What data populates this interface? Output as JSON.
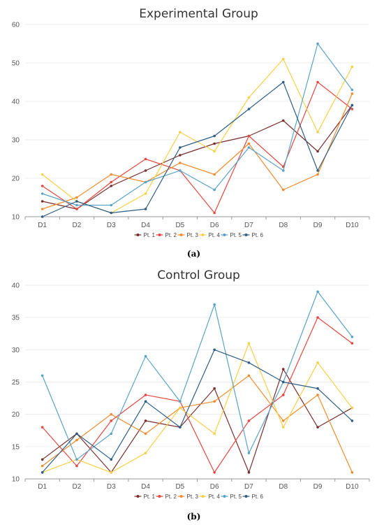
{
  "chart_data": [
    {
      "type": "line",
      "title": "Experimental Group",
      "caption": "(a)",
      "categories": [
        "D1",
        "D2",
        "D3",
        "D4",
        "D5",
        "D6",
        "D7",
        "D8",
        "D9",
        "D10"
      ],
      "ylim": [
        10,
        60
      ],
      "yticks": [
        10,
        20,
        30,
        40,
        50,
        60
      ],
      "grid": "horizontal",
      "legend_position": "bottom",
      "series": [
        {
          "name": "Pt. 1",
          "color": "#7a2e2e",
          "values": [
            14,
            12,
            18,
            22,
            26,
            29,
            31,
            35,
            27,
            39
          ]
        },
        {
          "name": "Pt. 2",
          "color": "#e8473f",
          "values": [
            18,
            12,
            19,
            25,
            22,
            11,
            31,
            23,
            45,
            38
          ]
        },
        {
          "name": "Pt. 3",
          "color": "#f28c2e",
          "values": [
            12,
            15,
            21,
            19,
            24,
            21,
            29,
            17,
            21,
            42
          ]
        },
        {
          "name": "Pt. 4",
          "color": "#f7d046",
          "values": [
            21,
            14,
            11,
            16,
            32,
            27,
            41,
            51,
            32,
            49
          ]
        },
        {
          "name": "Pt. 5",
          "color": "#5aa3c8",
          "values": [
            16,
            13,
            13,
            19,
            22,
            17,
            28,
            22,
            55,
            43
          ]
        },
        {
          "name": "Pt. 6",
          "color": "#2e5e86",
          "values": [
            10,
            14,
            11,
            12,
            28,
            31,
            38,
            45,
            22,
            39
          ]
        }
      ]
    },
    {
      "type": "line",
      "title": "Control Group",
      "caption": "(b)",
      "categories": [
        "D1",
        "D2",
        "D3",
        "D4",
        "D5",
        "D6",
        "D7",
        "D8",
        "D9",
        "D10"
      ],
      "ylim": [
        10,
        40
      ],
      "yticks": [
        10,
        15,
        20,
        25,
        30,
        35,
        40
      ],
      "grid": "horizontal",
      "legend_position": "bottom",
      "series": [
        {
          "name": "Pt. 1",
          "color": "#7a2e2e",
          "values": [
            13,
            17,
            11,
            19,
            18,
            24,
            11,
            27,
            18,
            21
          ]
        },
        {
          "name": "Pt. 2",
          "color": "#e8473f",
          "values": [
            18,
            12,
            19,
            23,
            22,
            11,
            19,
            23,
            35,
            31
          ]
        },
        {
          "name": "Pt. 3",
          "color": "#f28c2e",
          "values": [
            12,
            16,
            20,
            17,
            21,
            22,
            26,
            19,
            23,
            11
          ]
        },
        {
          "name": "Pt. 4",
          "color": "#f7d046",
          "values": [
            11,
            13,
            11,
            14,
            21,
            17,
            31,
            18,
            28,
            21
          ]
        },
        {
          "name": "Pt. 5",
          "color": "#5aa3c8",
          "values": [
            26,
            13,
            17,
            29,
            22,
            37,
            14,
            25,
            39,
            32
          ]
        },
        {
          "name": "Pt. 6",
          "color": "#2e5e86",
          "values": [
            11,
            17,
            13,
            22,
            18,
            30,
            28,
            25,
            24,
            19
          ]
        }
      ]
    }
  ]
}
